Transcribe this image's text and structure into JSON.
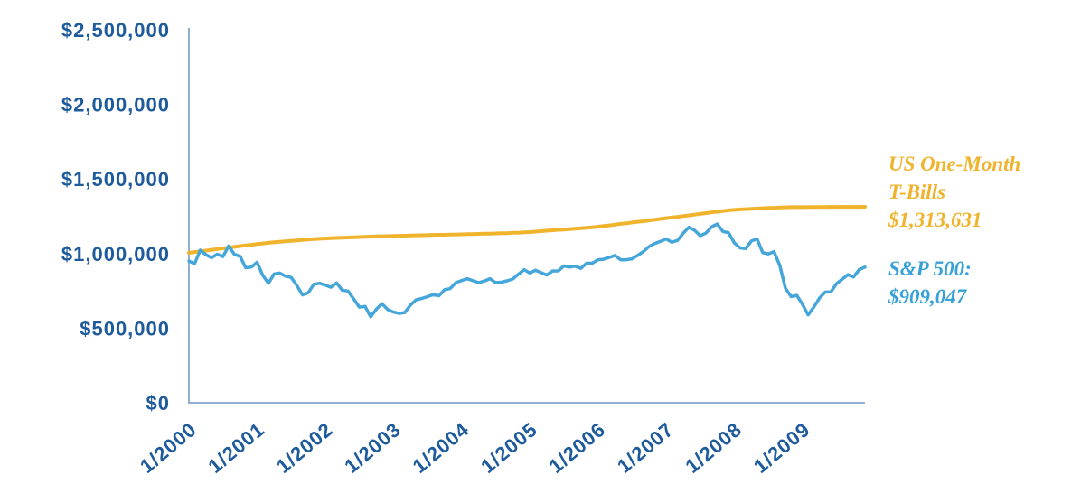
{
  "colors": {
    "axis_label_blue": "#1e5b9c",
    "axis_line": "#8fafd0",
    "tbills_yellow": "#efb32c",
    "sp500_blue": "#45a6d9",
    "legend_sp500_blue": "#38a2d8",
    "background": "#ffffff"
  },
  "legend": {
    "tbills": {
      "line1": "US One-Month",
      "line2": "T-Bills",
      "line3": "$1,313,631"
    },
    "sp500": {
      "line1": "S&P 500:",
      "line2": "$909,047"
    }
  },
  "chart_data": {
    "type": "line",
    "title": "",
    "xlabel": "",
    "ylabel": "",
    "grid": false,
    "legend_position": "right",
    "x_unit": "month",
    "x_range": [
      "1/2000",
      "12/2009"
    ],
    "months_count": 120,
    "x_tick_labels": [
      "1/2000",
      "1/2001",
      "1/2002",
      "1/2003",
      "1/2004",
      "1/2005",
      "1/2006",
      "1/2007",
      "1/2008",
      "1/2009"
    ],
    "x_tick_month_index": [
      0,
      12,
      24,
      36,
      48,
      60,
      72,
      84,
      96,
      108
    ],
    "ylim": [
      0,
      2500000
    ],
    "y_ticks": [
      0,
      500000,
      1000000,
      1500000,
      2000000,
      2500000
    ],
    "y_tick_labels": [
      "$0",
      "$500,000",
      "$1,000,000",
      "$1,500,000",
      "$2,000,000",
      "$2,500,000"
    ],
    "series": [
      {
        "name": "US One-Month T-Bills",
        "color": "#efb32c",
        "final_value": 1313631,
        "final_value_label": "$1,313,631",
        "values": [
          1005000,
          1010000,
          1015000,
          1020000,
          1025000,
          1030000,
          1035000,
          1040000,
          1045000,
          1050000,
          1055000,
          1059000,
          1064000,
          1068000,
          1072000,
          1076000,
          1079000,
          1082000,
          1085000,
          1088000,
          1091000,
          1094000,
          1097000,
          1099000,
          1101000,
          1103000,
          1105000,
          1106000,
          1108000,
          1109000,
          1111000,
          1112000,
          1114000,
          1115000,
          1116000,
          1117000,
          1118000,
          1119000,
          1120000,
          1121000,
          1122000,
          1123000,
          1124000,
          1125000,
          1126000,
          1126000,
          1127000,
          1128000,
          1129000,
          1130000,
          1131000,
          1132000,
          1133000,
          1134000,
          1135000,
          1136000,
          1137000,
          1139000,
          1140000,
          1142000,
          1144000,
          1147000,
          1150000,
          1153000,
          1156000,
          1159000,
          1161000,
          1164000,
          1167000,
          1170000,
          1173000,
          1176000,
          1180000,
          1185000,
          1189000,
          1194000,
          1199000,
          1203000,
          1208000,
          1213000,
          1217000,
          1222000,
          1227000,
          1232000,
          1237000,
          1242000,
          1246000,
          1251000,
          1256000,
          1261000,
          1266000,
          1271000,
          1276000,
          1280000,
          1285000,
          1290000,
          1293000,
          1296000,
          1298000,
          1300000,
          1302000,
          1304000,
          1306000,
          1307000,
          1309000,
          1310000,
          1311000,
          1311000,
          1311000,
          1312000,
          1312000,
          1312000,
          1312000,
          1313000,
          1313000,
          1313000,
          1313000,
          1313000,
          1313000,
          1313631
        ]
      },
      {
        "name": "S&P 500",
        "color": "#45a6d9",
        "final_value": 909047,
        "final_value_label": "$909,047",
        "values": [
          950000,
          932000,
          1023000,
          992000,
          972000,
          996000,
          980000,
          1050000,
          995000,
          982000,
          905000,
          909000,
          941000,
          855000,
          801000,
          863000,
          869000,
          848000,
          840000,
          787000,
          723000,
          737000,
          794000,
          801000,
          789000,
          774000,
          803000,
          754000,
          749000,
          696000,
          641000,
          646000,
          576000,
          627000,
          664000,
          625000,
          608000,
          599000,
          605000,
          655000,
          690000,
          699000,
          711000,
          725000,
          717000,
          758000,
          765000,
          805000,
          819000,
          831000,
          818000,
          805000,
          816000,
          832000,
          805000,
          808000,
          817000,
          829000,
          862000,
          892000,
          870000,
          888000,
          872000,
          856000,
          883000,
          884000,
          917000,
          909000,
          916000,
          901000,
          935000,
          935000,
          959000,
          962000,
          974000,
          987000,
          958000,
          959000,
          965000,
          988000,
          1014000,
          1047000,
          1067000,
          1082000,
          1098000,
          1076000,
          1088000,
          1136000,
          1176000,
          1156000,
          1120000,
          1137000,
          1179000,
          1198000,
          1148000,
          1140000,
          1072000,
          1038000,
          1033000,
          1084000,
          1098000,
          1006000,
          998000,
          1012000,
          922000,
          767000,
          712000,
          720000,
          659000,
          589000,
          641000,
          702000,
          742000,
          743000,
          799000,
          828000,
          859000,
          843000,
          893000,
          909047
        ]
      }
    ]
  }
}
